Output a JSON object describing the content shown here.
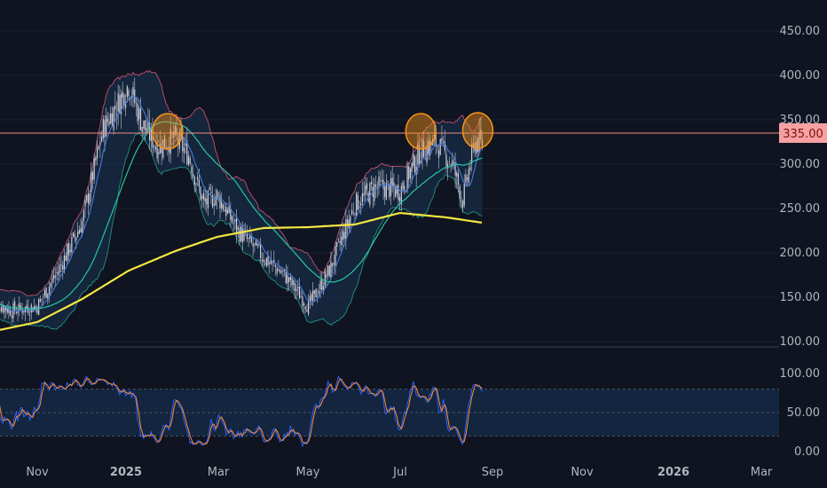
{
  "colors": {
    "background": "#0f1420",
    "grid": "#1b2130",
    "axis_text": "#b2b5be",
    "resistance": "#f28b82",
    "price_label_bg": "#f7a1a0",
    "price_label_text": "#7a0f12",
    "sma_long": "#f5e642",
    "sma_mid": "#26c6a0",
    "sma_short": "#4a7bd8",
    "band": "#e05a7a",
    "candle": "#e0dde8",
    "highlight": "#f7931a",
    "rsi_k": "#2962ff",
    "rsi_d": "#ff8c3b",
    "rsi_band": "#1a3a66"
  },
  "chart_data": [
    {
      "type": "candlestick",
      "title": "",
      "ylim": [
        100,
        450
      ],
      "y_ticks": [
        "100.00",
        "150.00",
        "200.00",
        "250.00",
        "300.00",
        "350.00",
        "400.00",
        "450.00"
      ],
      "x_ticks": [
        "Nov",
        "2025",
        "Mar",
        "May",
        "Jul",
        "Sep",
        "Nov",
        "2026",
        "Mar"
      ],
      "resistance_level": 335,
      "resistance_label": "335.00",
      "price_anchors": [
        {
          "date": "2024-10-01",
          "value": 145
        },
        {
          "date": "2024-10-15",
          "value": 135
        },
        {
          "date": "2024-11-01",
          "value": 140
        },
        {
          "date": "2024-11-15",
          "value": 180
        },
        {
          "date": "2024-12-01",
          "value": 235
        },
        {
          "date": "2024-12-15",
          "value": 340
        },
        {
          "date": "2025-01-01",
          "value": 390
        },
        {
          "date": "2025-01-10",
          "value": 345
        },
        {
          "date": "2025-01-20",
          "value": 320
        },
        {
          "date": "2025-02-01",
          "value": 330
        },
        {
          "date": "2025-02-10",
          "value": 310
        },
        {
          "date": "2025-02-20",
          "value": 255
        },
        {
          "date": "2025-03-01",
          "value": 265
        },
        {
          "date": "2025-03-15",
          "value": 225
        },
        {
          "date": "2025-04-01",
          "value": 195
        },
        {
          "date": "2025-04-15",
          "value": 175
        },
        {
          "date": "2025-05-01",
          "value": 140
        },
        {
          "date": "2025-05-15",
          "value": 180
        },
        {
          "date": "2025-06-01",
          "value": 255
        },
        {
          "date": "2025-06-15",
          "value": 275
        },
        {
          "date": "2025-07-01",
          "value": 270
        },
        {
          "date": "2025-07-15",
          "value": 315
        },
        {
          "date": "2025-07-25",
          "value": 325
        },
        {
          "date": "2025-08-05",
          "value": 300
        },
        {
          "date": "2025-08-12",
          "value": 260
        },
        {
          "date": "2025-08-20",
          "value": 325
        },
        {
          "date": "2025-08-25",
          "value": 322
        }
      ],
      "sma_long": [
        {
          "date": "2024-10-01",
          "value": 111
        },
        {
          "date": "2024-11-01",
          "value": 122
        },
        {
          "date": "2024-12-01",
          "value": 148
        },
        {
          "date": "2025-01-01",
          "value": 180
        },
        {
          "date": "2025-02-01",
          "value": 202
        },
        {
          "date": "2025-03-01",
          "value": 218
        },
        {
          "date": "2025-04-01",
          "value": 228
        },
        {
          "date": "2025-05-01",
          "value": 229
        },
        {
          "date": "2025-06-01",
          "value": 232
        },
        {
          "date": "2025-07-01",
          "value": 245
        },
        {
          "date": "2025-08-01",
          "value": 240
        },
        {
          "date": "2025-08-25",
          "value": 234
        }
      ],
      "highlights": [
        {
          "date": "2025-01-27",
          "value": 337
        },
        {
          "date": "2025-07-15",
          "value": 337
        },
        {
          "date": "2025-08-22",
          "value": 338
        }
      ]
    },
    {
      "type": "line",
      "title": "",
      "ylim": [
        0,
        100
      ],
      "y_ticks": [
        "0.00",
        "50.00",
        "100.00"
      ],
      "band": [
        20,
        80
      ],
      "series": [
        {
          "values": []
        },
        {
          "values": []
        }
      ]
    }
  ]
}
